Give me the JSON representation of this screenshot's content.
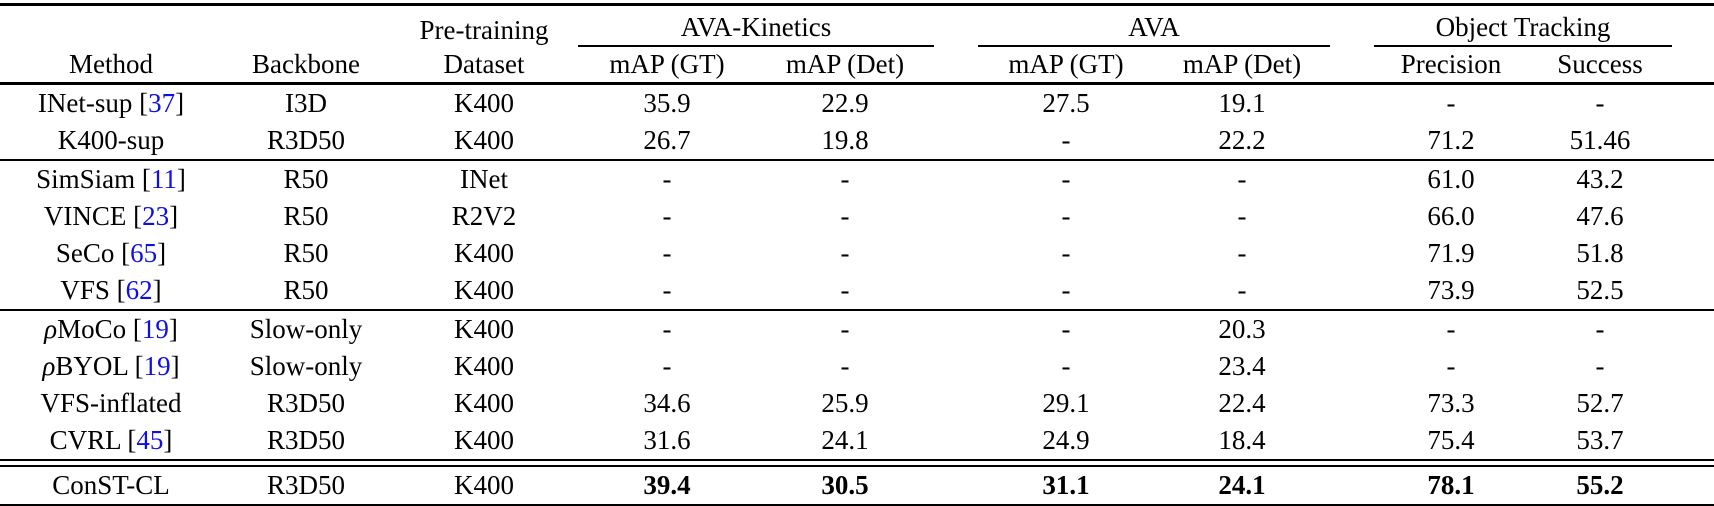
{
  "page": {
    "background": "#ffffff",
    "text_color": "#000000",
    "cite_color": "#0e0ee6"
  },
  "header": {
    "method": "Method",
    "backbone": "Backbone",
    "pretraining_line1": "Pre-training",
    "pretraining_line2": "Dataset",
    "groups": [
      {
        "title": "AVA-Kinetics",
        "cols": [
          "mAP (GT)",
          "mAP (Det)"
        ]
      },
      {
        "title": "AVA",
        "cols": [
          "mAP (GT)",
          "mAP (Det)"
        ]
      },
      {
        "title": "Object Tracking",
        "cols": [
          "Precision",
          "Success"
        ]
      }
    ]
  },
  "table": {
    "value_col_names": [
      "cell-ava-kinetics-map-gt",
      "cell-ava-kinetics-map-det",
      "cell-ava-map-gt",
      "cell-ava-map-det",
      "cell-precision",
      "cell-success"
    ],
    "sections": [
      {
        "rule_above": "none",
        "rows": [
          {
            "method": "INet-sup",
            "cite": "37",
            "backbone": "I3D",
            "dataset": "K400",
            "values": [
              "35.9",
              "22.9",
              "27.5",
              "19.1",
              "-",
              "-"
            ]
          },
          {
            "method": "K400-sup",
            "cite": null,
            "backbone": "R3D50",
            "dataset": "K400",
            "values": [
              "26.7",
              "19.8",
              "-",
              "22.2",
              "71.2",
              "51.46"
            ]
          }
        ]
      },
      {
        "rule_above": "single",
        "rows": [
          {
            "method": "SimSiam",
            "cite": "11",
            "backbone": "R50",
            "dataset": "INet",
            "values": [
              "-",
              "-",
              "-",
              "-",
              "61.0",
              "43.2"
            ]
          },
          {
            "method": "VINCE",
            "cite": "23",
            "backbone": "R50",
            "dataset": "R2V2",
            "values": [
              "-",
              "-",
              "-",
              "-",
              "66.0",
              "47.6"
            ]
          },
          {
            "method": "SeCo",
            "cite": "65",
            "backbone": "R50",
            "dataset": "K400",
            "values": [
              "-",
              "-",
              "-",
              "-",
              "71.9",
              "51.8"
            ]
          },
          {
            "method": "VFS",
            "cite": "62",
            "backbone": "R50",
            "dataset": "K400",
            "values": [
              "-",
              "-",
              "-",
              "-",
              "73.9",
              "52.5"
            ]
          }
        ]
      },
      {
        "rule_above": "single",
        "rows": [
          {
            "method_prefix": "ρ",
            "method": "MoCo",
            "cite": "19",
            "backbone": "Slow-only",
            "dataset": "K400",
            "values": [
              "-",
              "-",
              "-",
              "20.3",
              "-",
              "-"
            ]
          },
          {
            "method_prefix": "ρ",
            "method": "BYOL",
            "cite": "19",
            "backbone": "Slow-only",
            "dataset": "K400",
            "values": [
              "-",
              "-",
              "-",
              "23.4",
              "-",
              "-"
            ]
          },
          {
            "method": "VFS-inflated",
            "cite": null,
            "backbone": "R3D50",
            "dataset": "K400",
            "values": [
              "34.6",
              "25.9",
              "29.1",
              "22.4",
              "73.3",
              "52.7"
            ]
          },
          {
            "method": "CVRL",
            "cite": "45",
            "backbone": "R3D50",
            "dataset": "K400",
            "values": [
              "31.6",
              "24.1",
              "24.9",
              "18.4",
              "75.4",
              "53.7"
            ]
          }
        ]
      },
      {
        "rule_above": "double",
        "rows": [
          {
            "method": "ConST-CL",
            "cite": null,
            "backbone": "R3D50",
            "dataset": "K400",
            "bold_values": true,
            "values": [
              "39.4",
              "30.5",
              "31.1",
              "24.1",
              "78.1",
              "55.2"
            ]
          }
        ]
      }
    ]
  }
}
